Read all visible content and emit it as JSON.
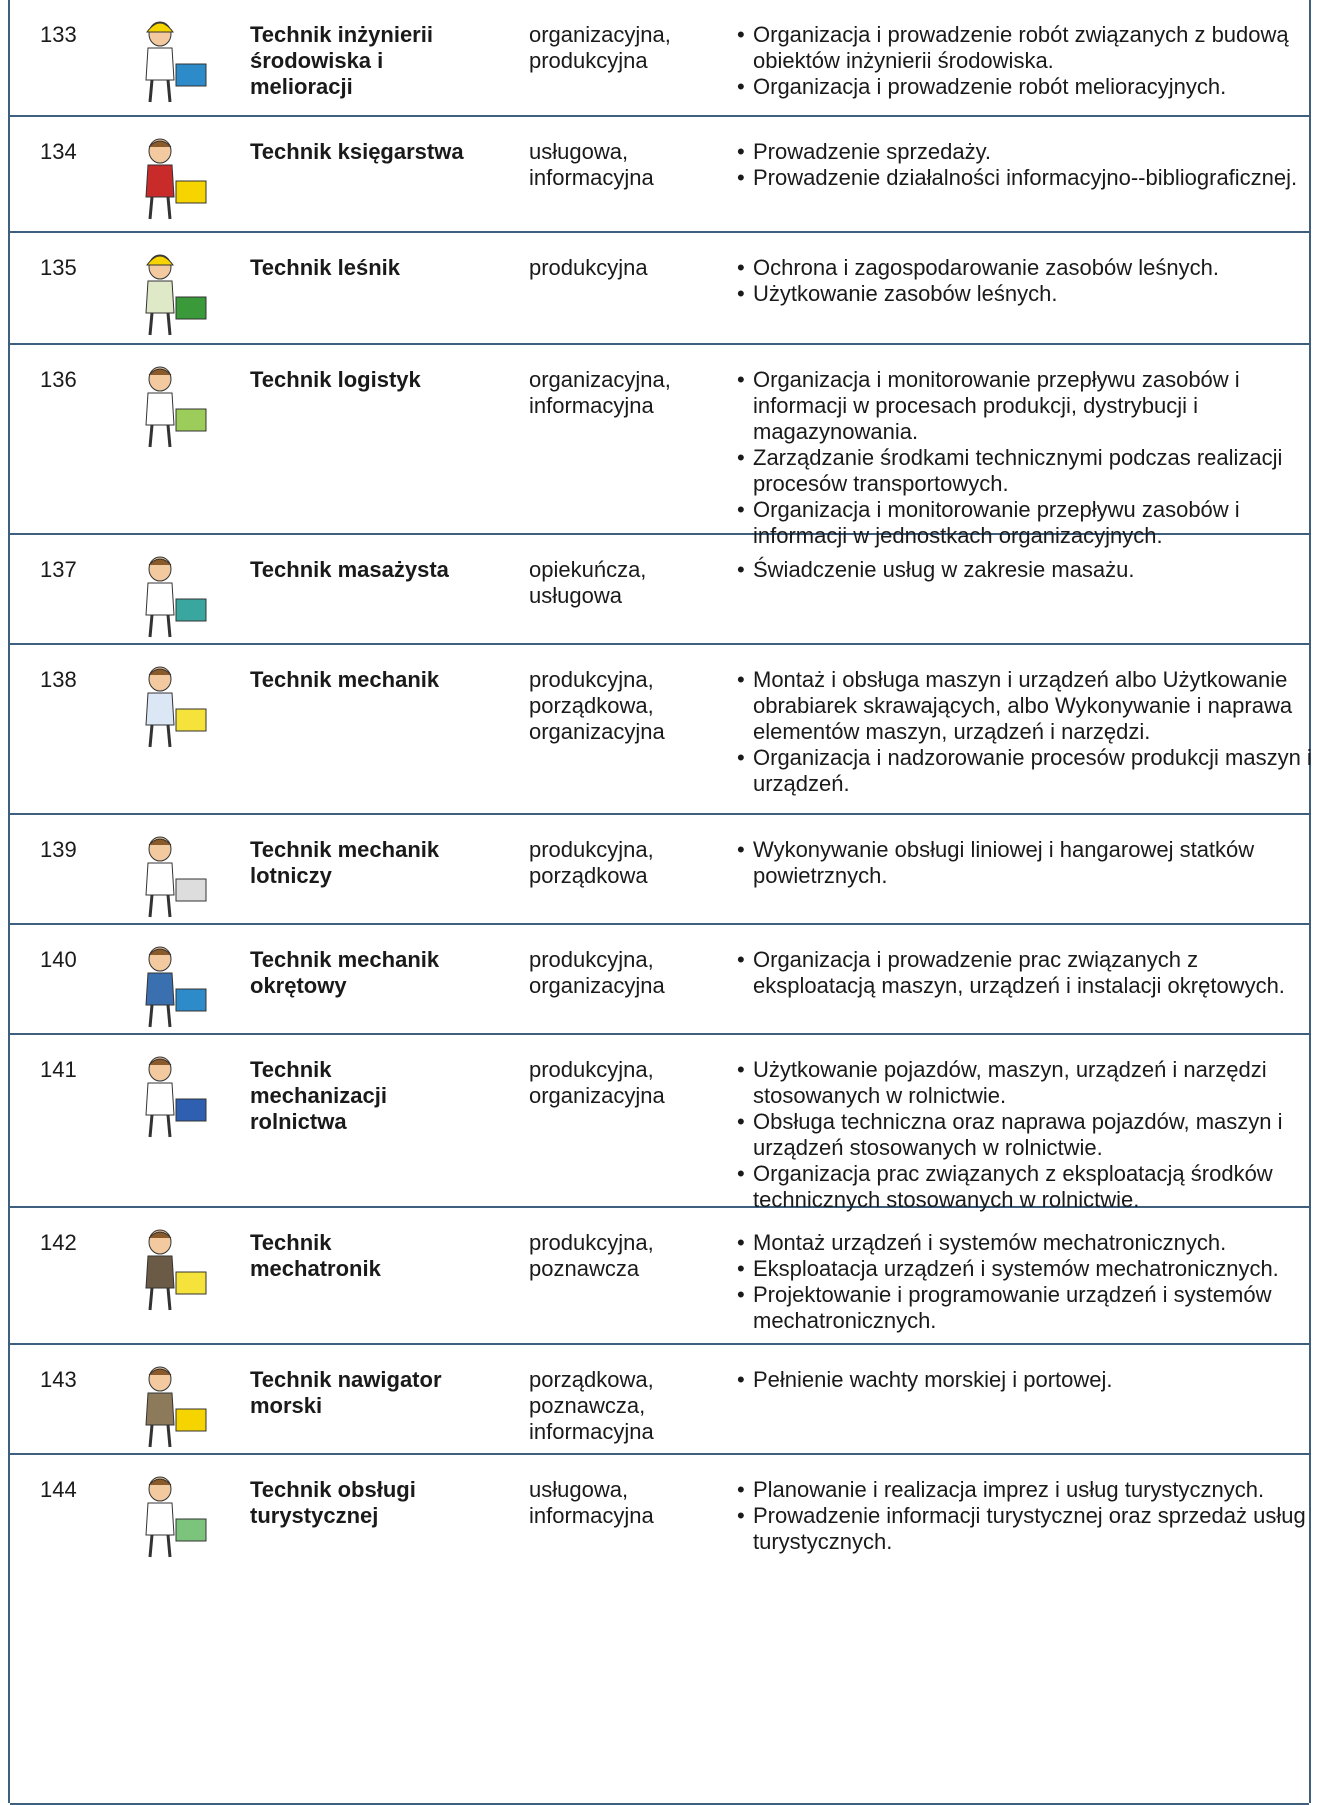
{
  "table": {
    "rows": [
      {
        "number": "133",
        "name": "Technik inżynierii środowiska i melioracji",
        "functions": "organizacyjna, produkcyjna",
        "tasks": [
          "Organizacja i prowadzenie robót związanych z budową obiektów inżynierii środowiska.",
          "Organizacja i prowadzenie robót melioracyjnych."
        ]
      },
      {
        "number": "134",
        "name": "Technik księgarstwa",
        "functions": "usługowa, informacyjna",
        "tasks": [
          "Prowadzenie sprzedaży.",
          "Prowadzenie działalności informacyjno--bibliograficznej."
        ]
      },
      {
        "number": "135",
        "name": "Technik leśnik",
        "functions": "produkcyjna",
        "tasks": [
          "Ochrona i zagospodarowanie zasobów leśnych.",
          "Użytkowanie zasobów leśnych."
        ]
      },
      {
        "number": "136",
        "name": "Technik logistyk",
        "functions": "organizacyjna, informacyjna",
        "tasks": [
          "Organizacja i monitorowanie przepływu zasobów i informacji w procesach produkcji, dystrybucji i magazynowania.",
          "Zarządzanie środkami technicznymi podczas realizacji procesów transportowych.",
          "Organizacja i monitorowanie przepływu zasobów i informacji w jednostkach organizacyjnych."
        ]
      },
      {
        "number": "137",
        "name": "Technik masażysta",
        "functions": "opiekuńcza, usługowa",
        "tasks": [
          "Świadczenie usług w zakresie masażu."
        ]
      },
      {
        "number": "138",
        "name": "Technik mechanik",
        "functions": "produkcyjna, porządkowa, organizacyjna",
        "tasks": [
          "Montaż i obsługa maszyn i urządzeń albo Użytkowanie obrabiarek skrawających, albo Wykonywanie i naprawa elementów maszyn, urządzeń i narzędzi.",
          "Organizacja i nadzorowanie procesów produkcji maszyn i urządzeń."
        ]
      },
      {
        "number": "139",
        "name": "Technik mechanik lotniczy",
        "functions": "produkcyjna, porządkowa",
        "tasks": [
          "Wykonywanie obsługi liniowej i hangarowej statków powietrznych."
        ]
      },
      {
        "number": "140",
        "name": "Technik mechanik okrętowy",
        "functions": "produkcyjna, organizacyjna",
        "tasks": [
          "Organizacja i prowadzenie prac związanych z eksploatacją maszyn, urządzeń i instalacji okrętowych."
        ]
      },
      {
        "number": "141",
        "name": "Technik mechanizacji rolnictwa",
        "functions": "produkcyjna, organizacyjna",
        "tasks": [
          "Użytkowanie pojazdów, maszyn, urządzeń i narzędzi stosowanych w rolnictwie.",
          "Obsługa techniczna oraz naprawa pojazdów, maszyn i urządzeń stosowanych w rolnictwie.",
          "Organizacja prac związanych z eksploatacją środków technicznych stosowanych w rolnictwie."
        ]
      },
      {
        "number": "142",
        "name": "Technik mechatronik",
        "functions": "produkcyjna, poznawcza",
        "tasks": [
          "Montaż urządzeń i systemów mechatronicznych.",
          "Eksploatacja urządzeń i systemów mechatronicznych.",
          "Projektowanie i programowanie urządzeń i systemów mechatronicznych."
        ]
      },
      {
        "number": "143",
        "name": "Technik nawigator morski",
        "functions": "porządkowa, poznawcza, informacyjna",
        "tasks": [
          "Pełnienie wachty morskiej i portowej."
        ]
      },
      {
        "number": "144",
        "name": "Technik obsługi turystycznej",
        "functions": "usługowa, informacyjna",
        "tasks": [
          "Planowanie i realizacja imprez i usług turystycznych.",
          "Prowadzenie informacji turystycznej oraz sprzedaż usług turystycznych."
        ]
      }
    ]
  }
}
